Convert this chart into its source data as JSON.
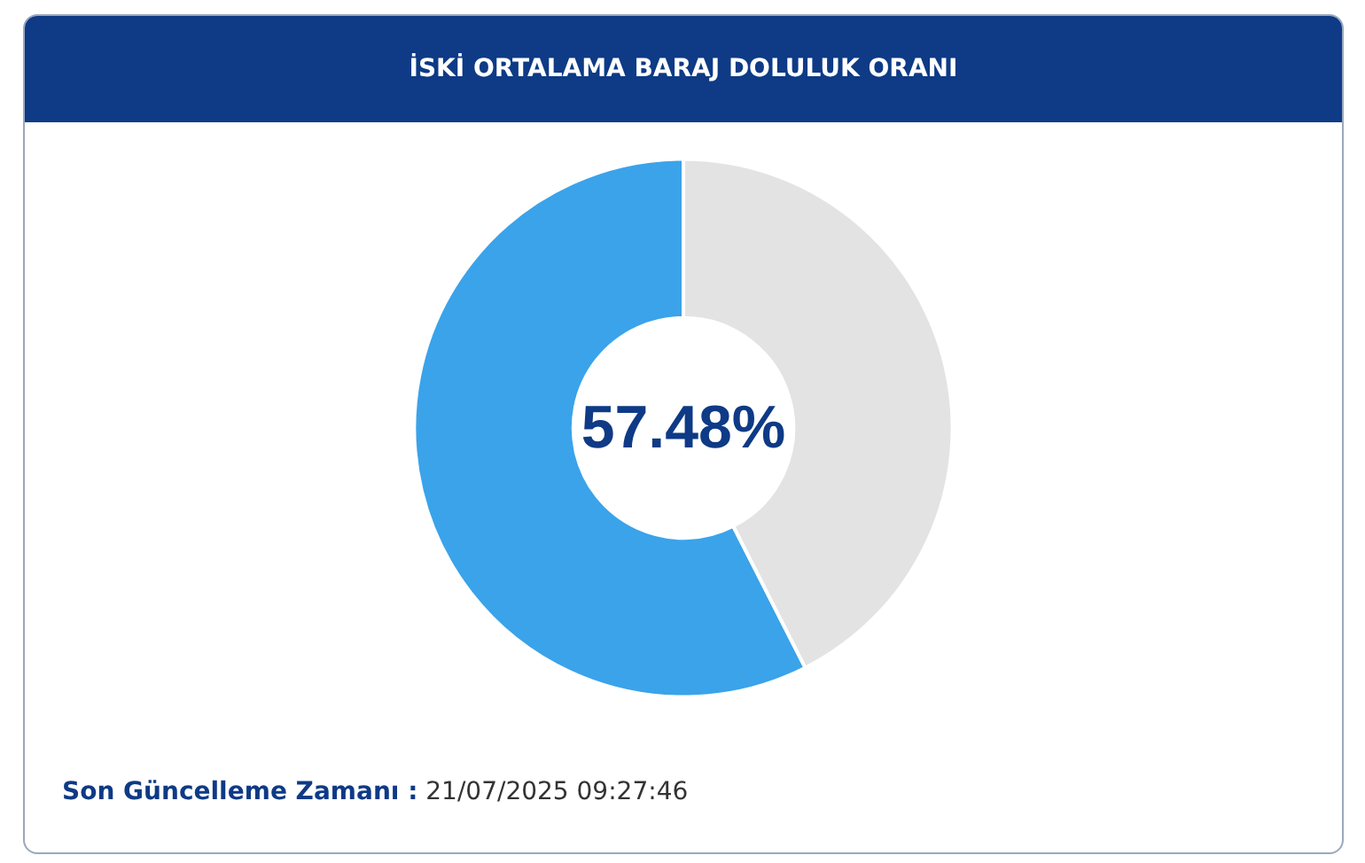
{
  "chart_data": {
    "type": "donut",
    "title": "İSKİ ORTALAMA BARAJ DOLULUK ORANI",
    "categories": [
      null,
      null
    ],
    "values": [
      57.48,
      42.52
    ],
    "colors": [
      "#3aa3ea",
      "#e3e3e3"
    ],
    "value_labels": [
      "57.48%",
      null
    ],
    "annotations": [
      "Son Güncelleme Zamanı :",
      "21/07/2025 09:27:46"
    ]
  }
}
